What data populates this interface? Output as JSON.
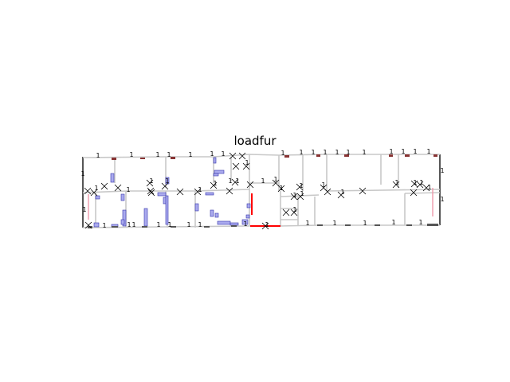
{
  "title": "loadfur",
  "colors": {
    "wall": "#c8c8c8",
    "outer_wall": "#555555",
    "furniture_fill": "#aaaaee",
    "furniture_stroke": "#3333aa",
    "highlight": "#ff0000",
    "pink": "#ee99aa",
    "door_mark": "#000000",
    "window_mark": "#883333"
  },
  "edge_label": "1",
  "door_marker_icon": "x-cross-icon"
}
